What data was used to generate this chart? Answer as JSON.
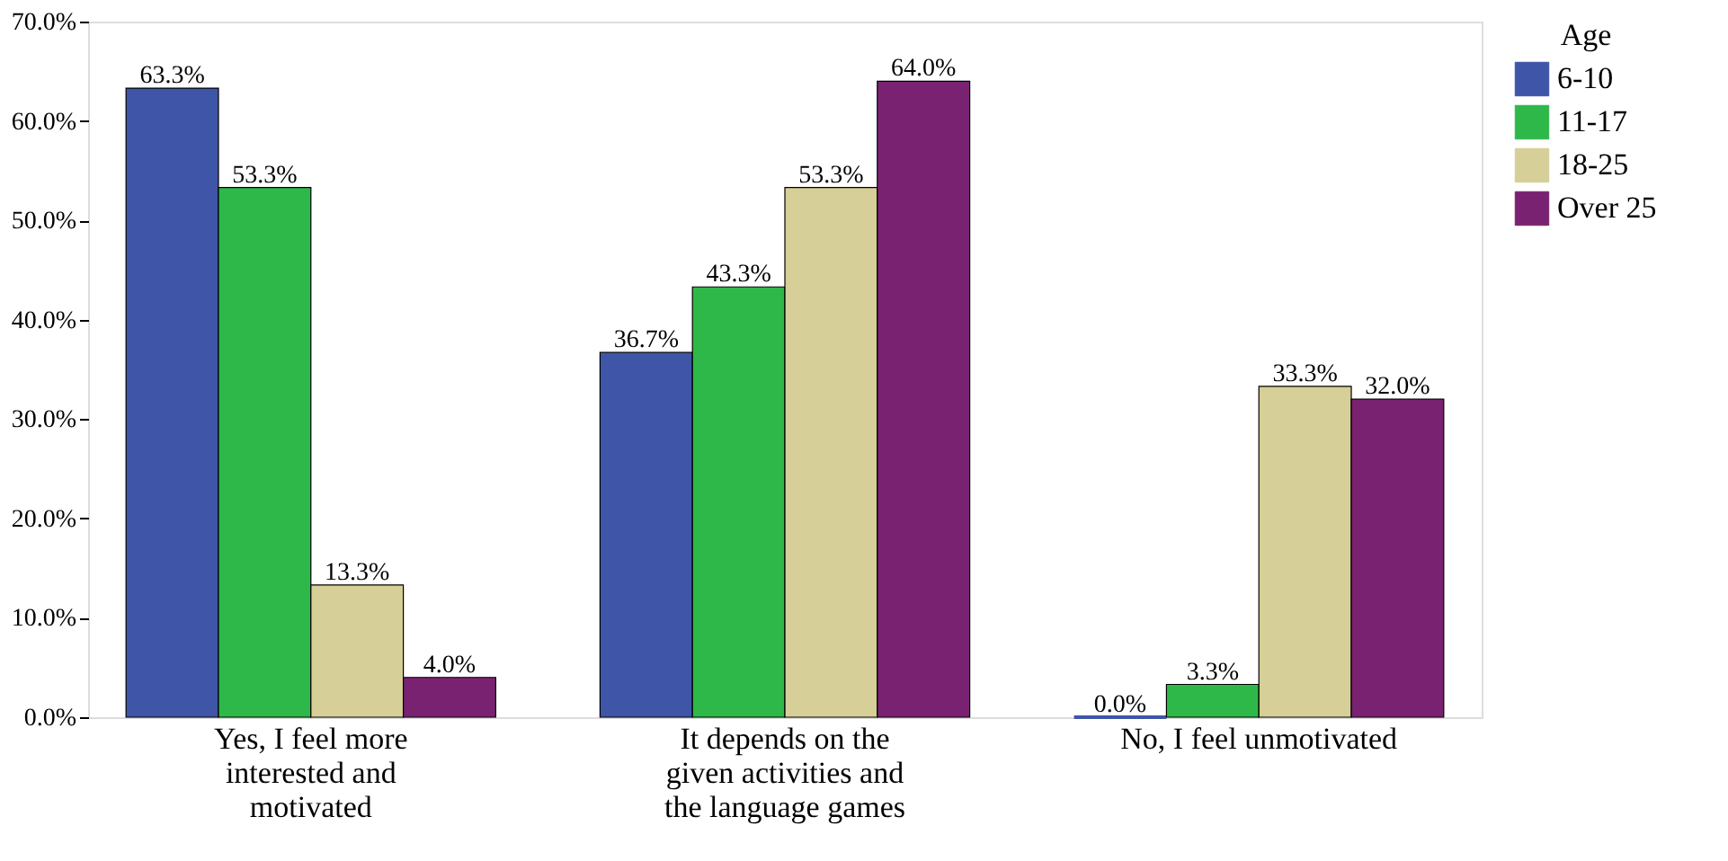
{
  "chart_data": {
    "type": "bar",
    "legend_title": "Age",
    "legend": "right",
    "categories": [
      "Yes, I feel more interested and motivated",
      "It depends on the given activities and the language games",
      "No, I feel unmotivated"
    ],
    "series": [
      {
        "name": "6-10",
        "color": "#3f55a8",
        "values": [
          63.3,
          36.7,
          0.0
        ],
        "value_labels": [
          "63.3%",
          "36.7%",
          "0.0%"
        ]
      },
      {
        "name": "11-17",
        "color": "#2fb84a",
        "values": [
          53.3,
          43.3,
          3.3
        ],
        "value_labels": [
          "53.3%",
          "43.3%",
          "3.3%"
        ]
      },
      {
        "name": "18-25",
        "color": "#d6cf97",
        "values": [
          13.3,
          53.3,
          33.3
        ],
        "value_labels": [
          "13.3%",
          "53.3%",
          "33.3%"
        ]
      },
      {
        "name": "Over 25",
        "color": "#7a2272",
        "values": [
          4.0,
          64.0,
          32.0
        ],
        "value_labels": [
          "4.0%",
          "64.0%",
          "32.0%"
        ]
      }
    ],
    "ylim": [
      0,
      70
    ],
    "yticks": [
      {
        "value": 0,
        "label": "0.0%"
      },
      {
        "value": 10,
        "label": "10.0%"
      },
      {
        "value": 20,
        "label": "20.0%"
      },
      {
        "value": 30,
        "label": "30.0%"
      },
      {
        "value": 40,
        "label": "40.0%"
      },
      {
        "value": 50,
        "label": "50.0%"
      },
      {
        "value": 60,
        "label": "60.0%"
      },
      {
        "value": 70,
        "label": "70.0%"
      }
    ],
    "grid": false
  }
}
